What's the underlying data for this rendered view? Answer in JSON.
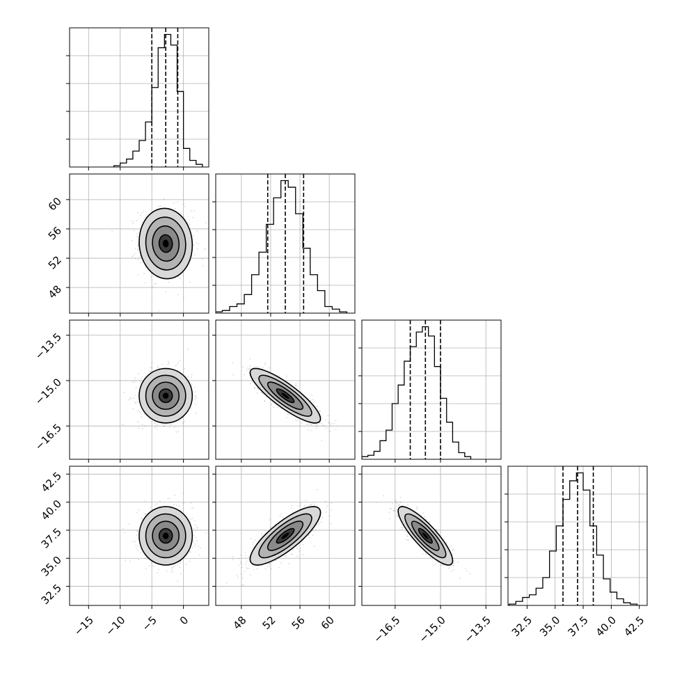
{
  "chart_data": {
    "type": "corner",
    "parameters": [
      {
        "range": [
          -18,
          4
        ],
        "ticks": [
          -15,
          -10,
          -5,
          0
        ],
        "tick_labels": [
          "−15",
          "−10",
          "−5",
          "0"
        ],
        "mean": -2.8,
        "sd": 2.1,
        "quantiles": [
          -5.0,
          -2.8,
          -0.9
        ],
        "hist_max": 1.0,
        "hist_bins": [
          {
            "x": -10.5,
            "v": 0.01
          },
          {
            "x": -9.5,
            "v": 0.03
          },
          {
            "x": -8.5,
            "v": 0.06
          },
          {
            "x": -7.5,
            "v": 0.12
          },
          {
            "x": -6.5,
            "v": 0.2
          },
          {
            "x": -5.5,
            "v": 0.34
          },
          {
            "x": -4.5,
            "v": 0.6
          },
          {
            "x": -3.5,
            "v": 0.9
          },
          {
            "x": -2.5,
            "v": 1.0
          },
          {
            "x": -1.5,
            "v": 0.92
          },
          {
            "x": -0.5,
            "v": 0.57
          },
          {
            "x": 0.5,
            "v": 0.14
          },
          {
            "x": 1.5,
            "v": 0.05
          },
          {
            "x": 2.5,
            "v": 0.02
          }
        ]
      },
      {
        "range": [
          44.5,
          63.5
        ],
        "ticks": [
          48,
          52,
          56,
          60
        ],
        "tick_labels": [
          "48",
          "52",
          "56",
          "60"
        ],
        "mean": 54.0,
        "sd": 2.4,
        "quantiles": [
          51.6,
          54.0,
          56.5
        ],
        "hist_max": 1.0,
        "hist_bins": [
          {
            "x": 44.9,
            "v": 0.01
          },
          {
            "x": 45.9,
            "v": 0.02
          },
          {
            "x": 46.9,
            "v": 0.05
          },
          {
            "x": 47.9,
            "v": 0.07
          },
          {
            "x": 48.9,
            "v": 0.14
          },
          {
            "x": 49.9,
            "v": 0.29
          },
          {
            "x": 50.9,
            "v": 0.46
          },
          {
            "x": 51.9,
            "v": 0.67
          },
          {
            "x": 52.9,
            "v": 0.87
          },
          {
            "x": 53.9,
            "v": 1.0
          },
          {
            "x": 54.9,
            "v": 0.95
          },
          {
            "x": 55.9,
            "v": 0.75
          },
          {
            "x": 56.9,
            "v": 0.49
          },
          {
            "x": 57.9,
            "v": 0.29
          },
          {
            "x": 58.9,
            "v": 0.17
          },
          {
            "x": 59.9,
            "v": 0.05
          },
          {
            "x": 60.9,
            "v": 0.03
          },
          {
            "x": 61.9,
            "v": 0.01
          }
        ]
      },
      {
        "range": [
          -17.6,
          -13.0
        ],
        "ticks": [
          -16.5,
          -15.0,
          -13.5
        ],
        "tick_labels": [
          "−16.5",
          "−15.0",
          "−13.5"
        ],
        "mean": -15.5,
        "sd": 0.45,
        "quantiles": [
          -16.0,
          -15.5,
          -15.0
        ],
        "hist_max": 1.0,
        "hist_bins": [
          {
            "x": -17.5,
            "v": 0.02
          },
          {
            "x": -17.3,
            "v": 0.03
          },
          {
            "x": -17.1,
            "v": 0.06
          },
          {
            "x": -16.9,
            "v": 0.14
          },
          {
            "x": -16.7,
            "v": 0.22
          },
          {
            "x": -16.5,
            "v": 0.42
          },
          {
            "x": -16.3,
            "v": 0.56
          },
          {
            "x": -16.1,
            "v": 0.74
          },
          {
            "x": -15.9,
            "v": 0.85
          },
          {
            "x": -15.7,
            "v": 0.96
          },
          {
            "x": -15.5,
            "v": 1.0
          },
          {
            "x": -15.3,
            "v": 0.93
          },
          {
            "x": -15.1,
            "v": 0.7
          },
          {
            "x": -14.9,
            "v": 0.46
          },
          {
            "x": -14.7,
            "v": 0.28
          },
          {
            "x": -14.5,
            "v": 0.13
          },
          {
            "x": -14.3,
            "v": 0.05
          },
          {
            "x": -14.1,
            "v": 0.02
          }
        ]
      },
      {
        "range": [
          30.8,
          43.2
        ],
        "ticks": [
          32.5,
          35.0,
          37.5,
          40.0,
          42.5
        ],
        "tick_labels": [
          "32.5",
          "35.0",
          "37.5",
          "40.0",
          "42.5"
        ],
        "mean": 37.0,
        "sd": 1.3,
        "quantiles": [
          35.7,
          37.0,
          38.4
        ],
        "hist_max": 1.0,
        "hist_bins": [
          {
            "x": 31.2,
            "v": 0.01
          },
          {
            "x": 31.8,
            "v": 0.03
          },
          {
            "x": 32.4,
            "v": 0.06
          },
          {
            "x": 33.0,
            "v": 0.08
          },
          {
            "x": 33.6,
            "v": 0.13
          },
          {
            "x": 34.2,
            "v": 0.21
          },
          {
            "x": 34.8,
            "v": 0.41
          },
          {
            "x": 35.4,
            "v": 0.6
          },
          {
            "x": 36.0,
            "v": 0.8
          },
          {
            "x": 36.6,
            "v": 0.94
          },
          {
            "x": 37.2,
            "v": 1.0
          },
          {
            "x": 37.8,
            "v": 0.87
          },
          {
            "x": 38.4,
            "v": 0.6
          },
          {
            "x": 39.0,
            "v": 0.38
          },
          {
            "x": 39.6,
            "v": 0.2
          },
          {
            "x": 40.2,
            "v": 0.1
          },
          {
            "x": 40.8,
            "v": 0.05
          },
          {
            "x": 41.4,
            "v": 0.02
          },
          {
            "x": 42.0,
            "v": 0.01
          }
        ]
      }
    ],
    "correlations": {
      "1-0": -0.05,
      "2-0": 0.0,
      "2-1": -0.85,
      "3-0": 0.0,
      "3-1": 0.8,
      "3-2": -0.85
    },
    "contour_levels_sigma": [
      0.5,
      1.0,
      1.5,
      2.0
    ],
    "xlabel": "",
    "ylabel": "",
    "title": ""
  }
}
